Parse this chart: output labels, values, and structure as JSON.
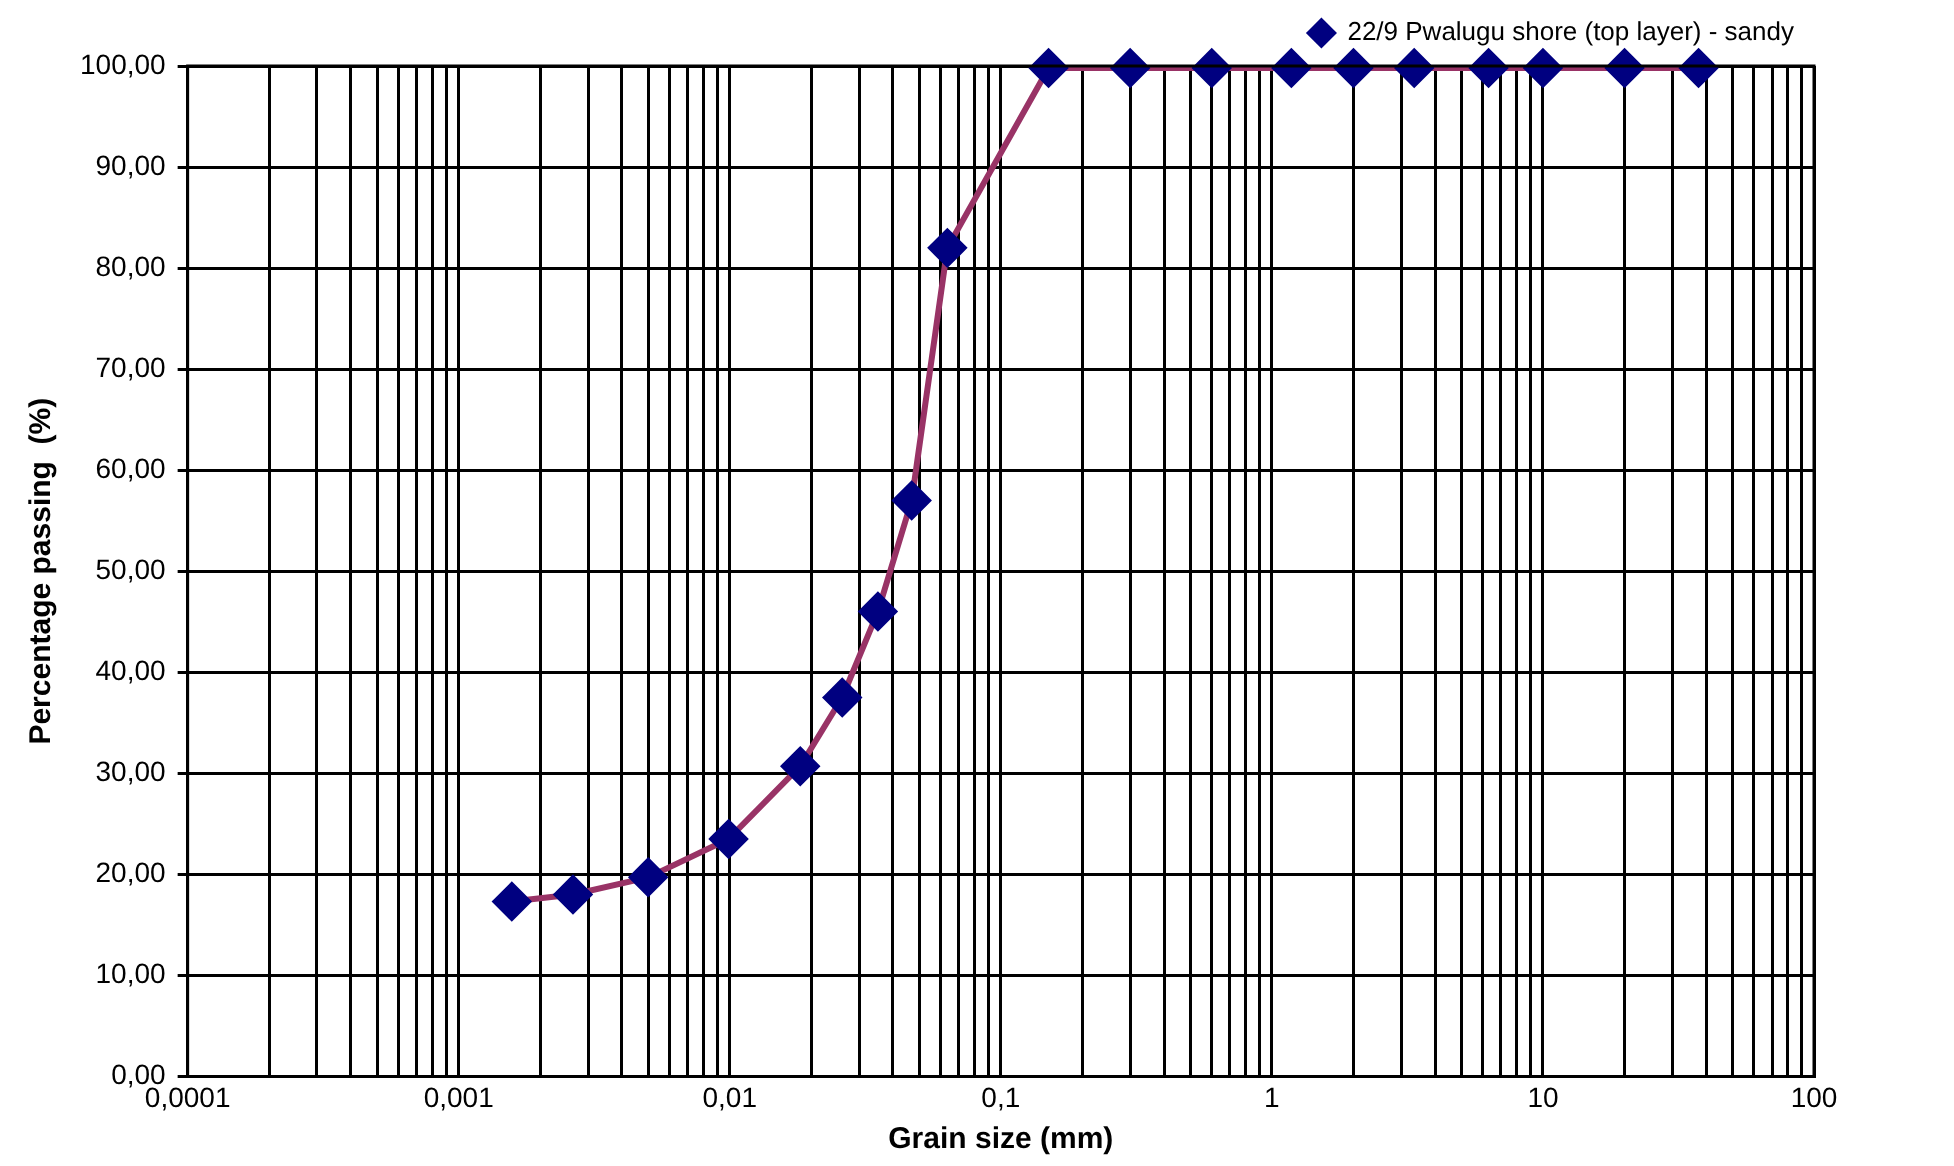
{
  "chart_data": {
    "type": "line",
    "xlabel": "Grain size (mm)",
    "ylabel": "Percentage passing  (%)",
    "log": "x",
    "grid": true,
    "legend": "top right",
    "marker": "diamond",
    "line_style": "solid",
    "xlim": [
      0.0001,
      100
    ],
    "ylim": [
      0,
      100
    ],
    "xticks": [
      {
        "value": 0.0001,
        "label": "0,0001"
      },
      {
        "value": 0.0002,
        "label": null
      },
      {
        "value": 0.0003,
        "label": null
      },
      {
        "value": 0.0004,
        "label": null
      },
      {
        "value": 0.0005,
        "label": null
      },
      {
        "value": 0.0006,
        "label": null
      },
      {
        "value": 0.0007,
        "label": null
      },
      {
        "value": 0.0008,
        "label": null
      },
      {
        "value": 0.0009,
        "label": null
      },
      {
        "value": 0.001,
        "label": "0,001"
      },
      {
        "value": 0.002,
        "label": null
      },
      {
        "value": 0.003,
        "label": null
      },
      {
        "value": 0.004,
        "label": null
      },
      {
        "value": 0.005,
        "label": null
      },
      {
        "value": 0.006,
        "label": null
      },
      {
        "value": 0.007,
        "label": null
      },
      {
        "value": 0.008,
        "label": null
      },
      {
        "value": 0.009,
        "label": null
      },
      {
        "value": 0.01,
        "label": "0,01"
      },
      {
        "value": 0.02,
        "label": null
      },
      {
        "value": 0.03,
        "label": null
      },
      {
        "value": 0.04,
        "label": null
      },
      {
        "value": 0.05,
        "label": null
      },
      {
        "value": 0.06,
        "label": null
      },
      {
        "value": 0.07,
        "label": null
      },
      {
        "value": 0.08,
        "label": null
      },
      {
        "value": 0.09,
        "label": null
      },
      {
        "value": 0.1,
        "label": "0,1"
      },
      {
        "value": 0.2,
        "label": null
      },
      {
        "value": 0.3,
        "label": null
      },
      {
        "value": 0.4,
        "label": null
      },
      {
        "value": 0.5,
        "label": null
      },
      {
        "value": 0.6,
        "label": null
      },
      {
        "value": 0.7,
        "label": null
      },
      {
        "value": 0.8,
        "label": null
      },
      {
        "value": 0.9,
        "label": null
      },
      {
        "value": 1,
        "label": "1"
      },
      {
        "value": 2,
        "label": null
      },
      {
        "value": 3,
        "label": null
      },
      {
        "value": 4,
        "label": null
      },
      {
        "value": 5,
        "label": null
      },
      {
        "value": 6,
        "label": null
      },
      {
        "value": 7,
        "label": null
      },
      {
        "value": 8,
        "label": null
      },
      {
        "value": 9,
        "label": null
      },
      {
        "value": 10,
        "label": "10"
      },
      {
        "value": 20,
        "label": null
      },
      {
        "value": 30,
        "label": null
      },
      {
        "value": 40,
        "label": null
      },
      {
        "value": 50,
        "label": null
      },
      {
        "value": 60,
        "label": null
      },
      {
        "value": 70,
        "label": null
      },
      {
        "value": 80,
        "label": null
      },
      {
        "value": 90,
        "label": null
      },
      {
        "value": 100,
        "label": "100"
      }
    ],
    "yticks": [
      {
        "value": 0,
        "label": "0,00"
      },
      {
        "value": 10,
        "label": "10,00"
      },
      {
        "value": 20,
        "label": "20,00"
      },
      {
        "value": 30,
        "label": "30,00"
      },
      {
        "value": 40,
        "label": "40,00"
      },
      {
        "value": 50,
        "label": "50,00"
      },
      {
        "value": 60,
        "label": "60,00"
      },
      {
        "value": 70,
        "label": "70,00"
      },
      {
        "value": 80,
        "label": "80,00"
      },
      {
        "value": 90,
        "label": "90,00"
      },
      {
        "value": 100,
        "label": "100,00"
      }
    ],
    "series": [
      {
        "name": "22/9 Pwalugu shore (top layer) - sandy",
        "color": "#993366",
        "x": [
          0.00157,
          0.00264,
          0.005,
          0.0099,
          0.0182,
          0.026,
          0.0352,
          0.0469,
          0.0635,
          0.15,
          0.3,
          0.6,
          1.18,
          2,
          3.35,
          6.3,
          10,
          20,
          37.5
        ],
        "values": [
          17.3,
          18,
          19.7,
          23.5,
          30.7,
          37.5,
          46,
          57,
          82,
          99.8,
          99.8,
          99.8,
          99.8,
          99.8,
          99.8,
          99.8,
          99.8,
          99.8,
          99.8
        ]
      }
    ]
  }
}
